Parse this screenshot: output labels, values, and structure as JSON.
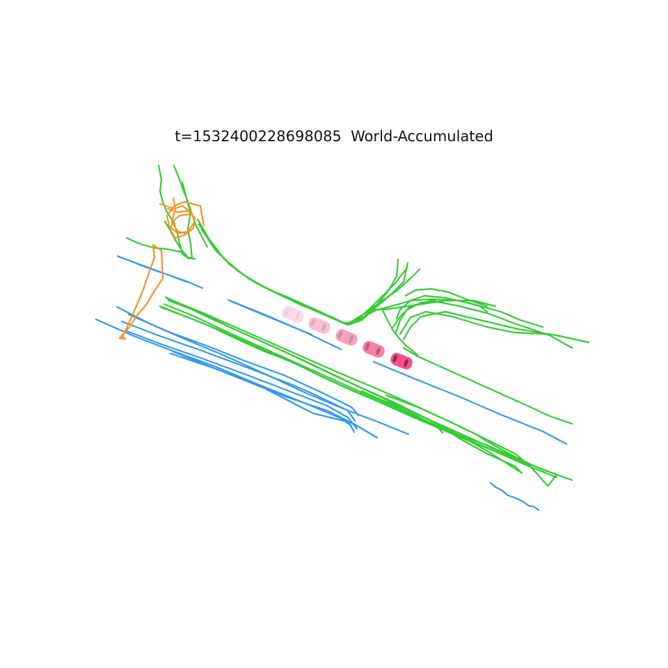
{
  "title": "t=1532400228698085  World-Accumulated",
  "colors": {
    "background": "#ffffff",
    "lane_divider": "#3399ee",
    "road_boundary": "#33cc33",
    "pedestrian_crossing": "#f59322",
    "ego_vehicle": "#ff4488"
  },
  "legend": null,
  "layers": [
    "lane_divider",
    "road_boundary",
    "pedestrian_crossing"
  ],
  "ego_vehicle": {
    "icon": "car-icon",
    "trail_opacity": [
      0.2,
      0.35,
      0.5,
      0.7,
      0.95
    ]
  }
}
